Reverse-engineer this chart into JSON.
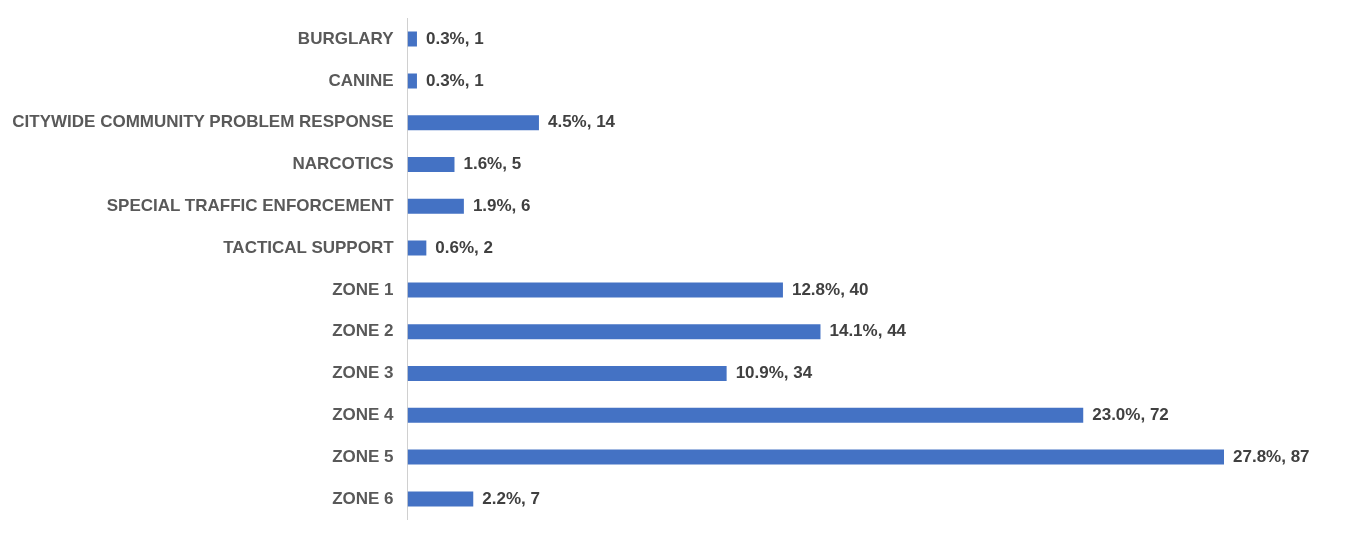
{
  "chart_data": {
    "type": "bar",
    "orientation": "horizontal",
    "categories": [
      "BURGLARY",
      "CANINE",
      "CITYWIDE COMMUNITY PROBLEM RESPONSE",
      "NARCOTICS",
      "SPECIAL TRAFFIC ENFORCEMENT",
      "TACTICAL SUPPORT",
      "ZONE 1",
      "ZONE 2",
      "ZONE 3",
      "ZONE 4",
      "ZONE 5",
      "ZONE 6"
    ],
    "values": [
      1,
      1,
      14,
      5,
      6,
      2,
      40,
      44,
      34,
      72,
      87,
      7
    ],
    "value_labels": [
      "0.3%, 1",
      "0.3%, 1",
      "4.5%, 14",
      "1.6%, 5",
      "1.9%, 6",
      "0.6%, 2",
      "12.8%, 40",
      "14.1%, 44",
      "10.9%, 34",
      "23.0%, 72",
      "27.8%, 87",
      "2.2%, 7"
    ],
    "color": "#4472c4",
    "grid": false,
    "legend": false,
    "tick_labels": "y"
  }
}
